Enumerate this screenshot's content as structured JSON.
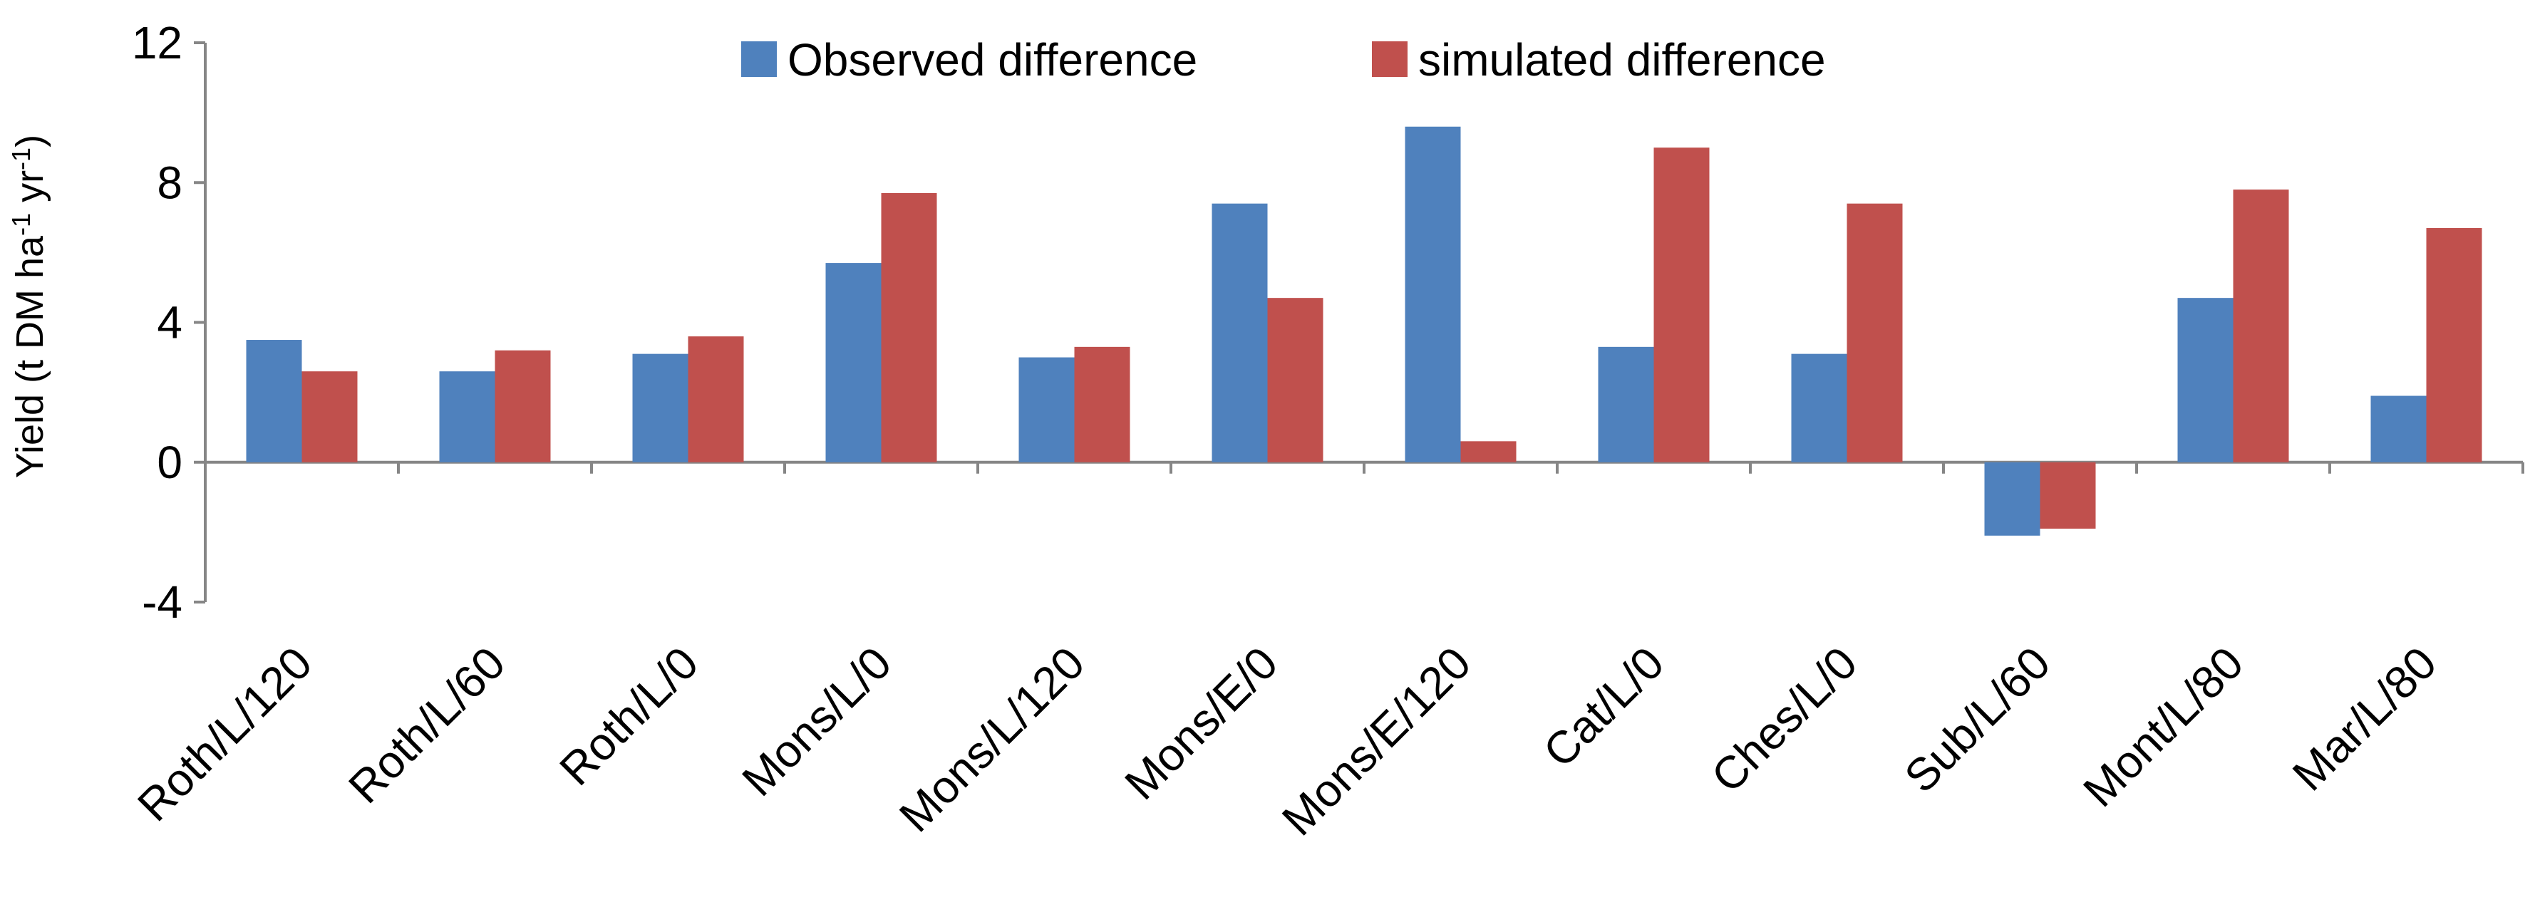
{
  "chart_data": {
    "type": "bar",
    "title": "",
    "xlabel": "",
    "ylabel": {
      "base": "Yield (t DM ha",
      "sup1": "-1",
      "mid": " yr",
      "sup2": "-1",
      "end": ")"
    },
    "ylim": [
      -4,
      12
    ],
    "yticks": [
      -4,
      0,
      4,
      8,
      12
    ],
    "categories": [
      "Roth/L/120",
      "Roth/L/60",
      "Roth/L/0",
      "Mons/L/0",
      "Mons/L/120",
      "Mons/E/0",
      "Mons/E/120",
      "Cat/L/0",
      "Ches/L/0",
      "Sub/L/60",
      "Mont/L/80",
      "Mar/L/80"
    ],
    "series": [
      {
        "name": "Observed difference",
        "color": "#4F81BD",
        "values": [
          3.5,
          2.6,
          3.1,
          5.7,
          3.0,
          7.4,
          9.6,
          3.3,
          3.1,
          -2.1,
          4.7,
          1.9
        ]
      },
      {
        "name": "simulated difference",
        "color": "#C0504D",
        "values": [
          2.6,
          3.2,
          3.6,
          7.7,
          3.3,
          4.7,
          0.6,
          9.0,
          7.4,
          -1.9,
          7.8,
          6.7
        ]
      }
    ],
    "legend_position": "top-center",
    "grid": false
  }
}
